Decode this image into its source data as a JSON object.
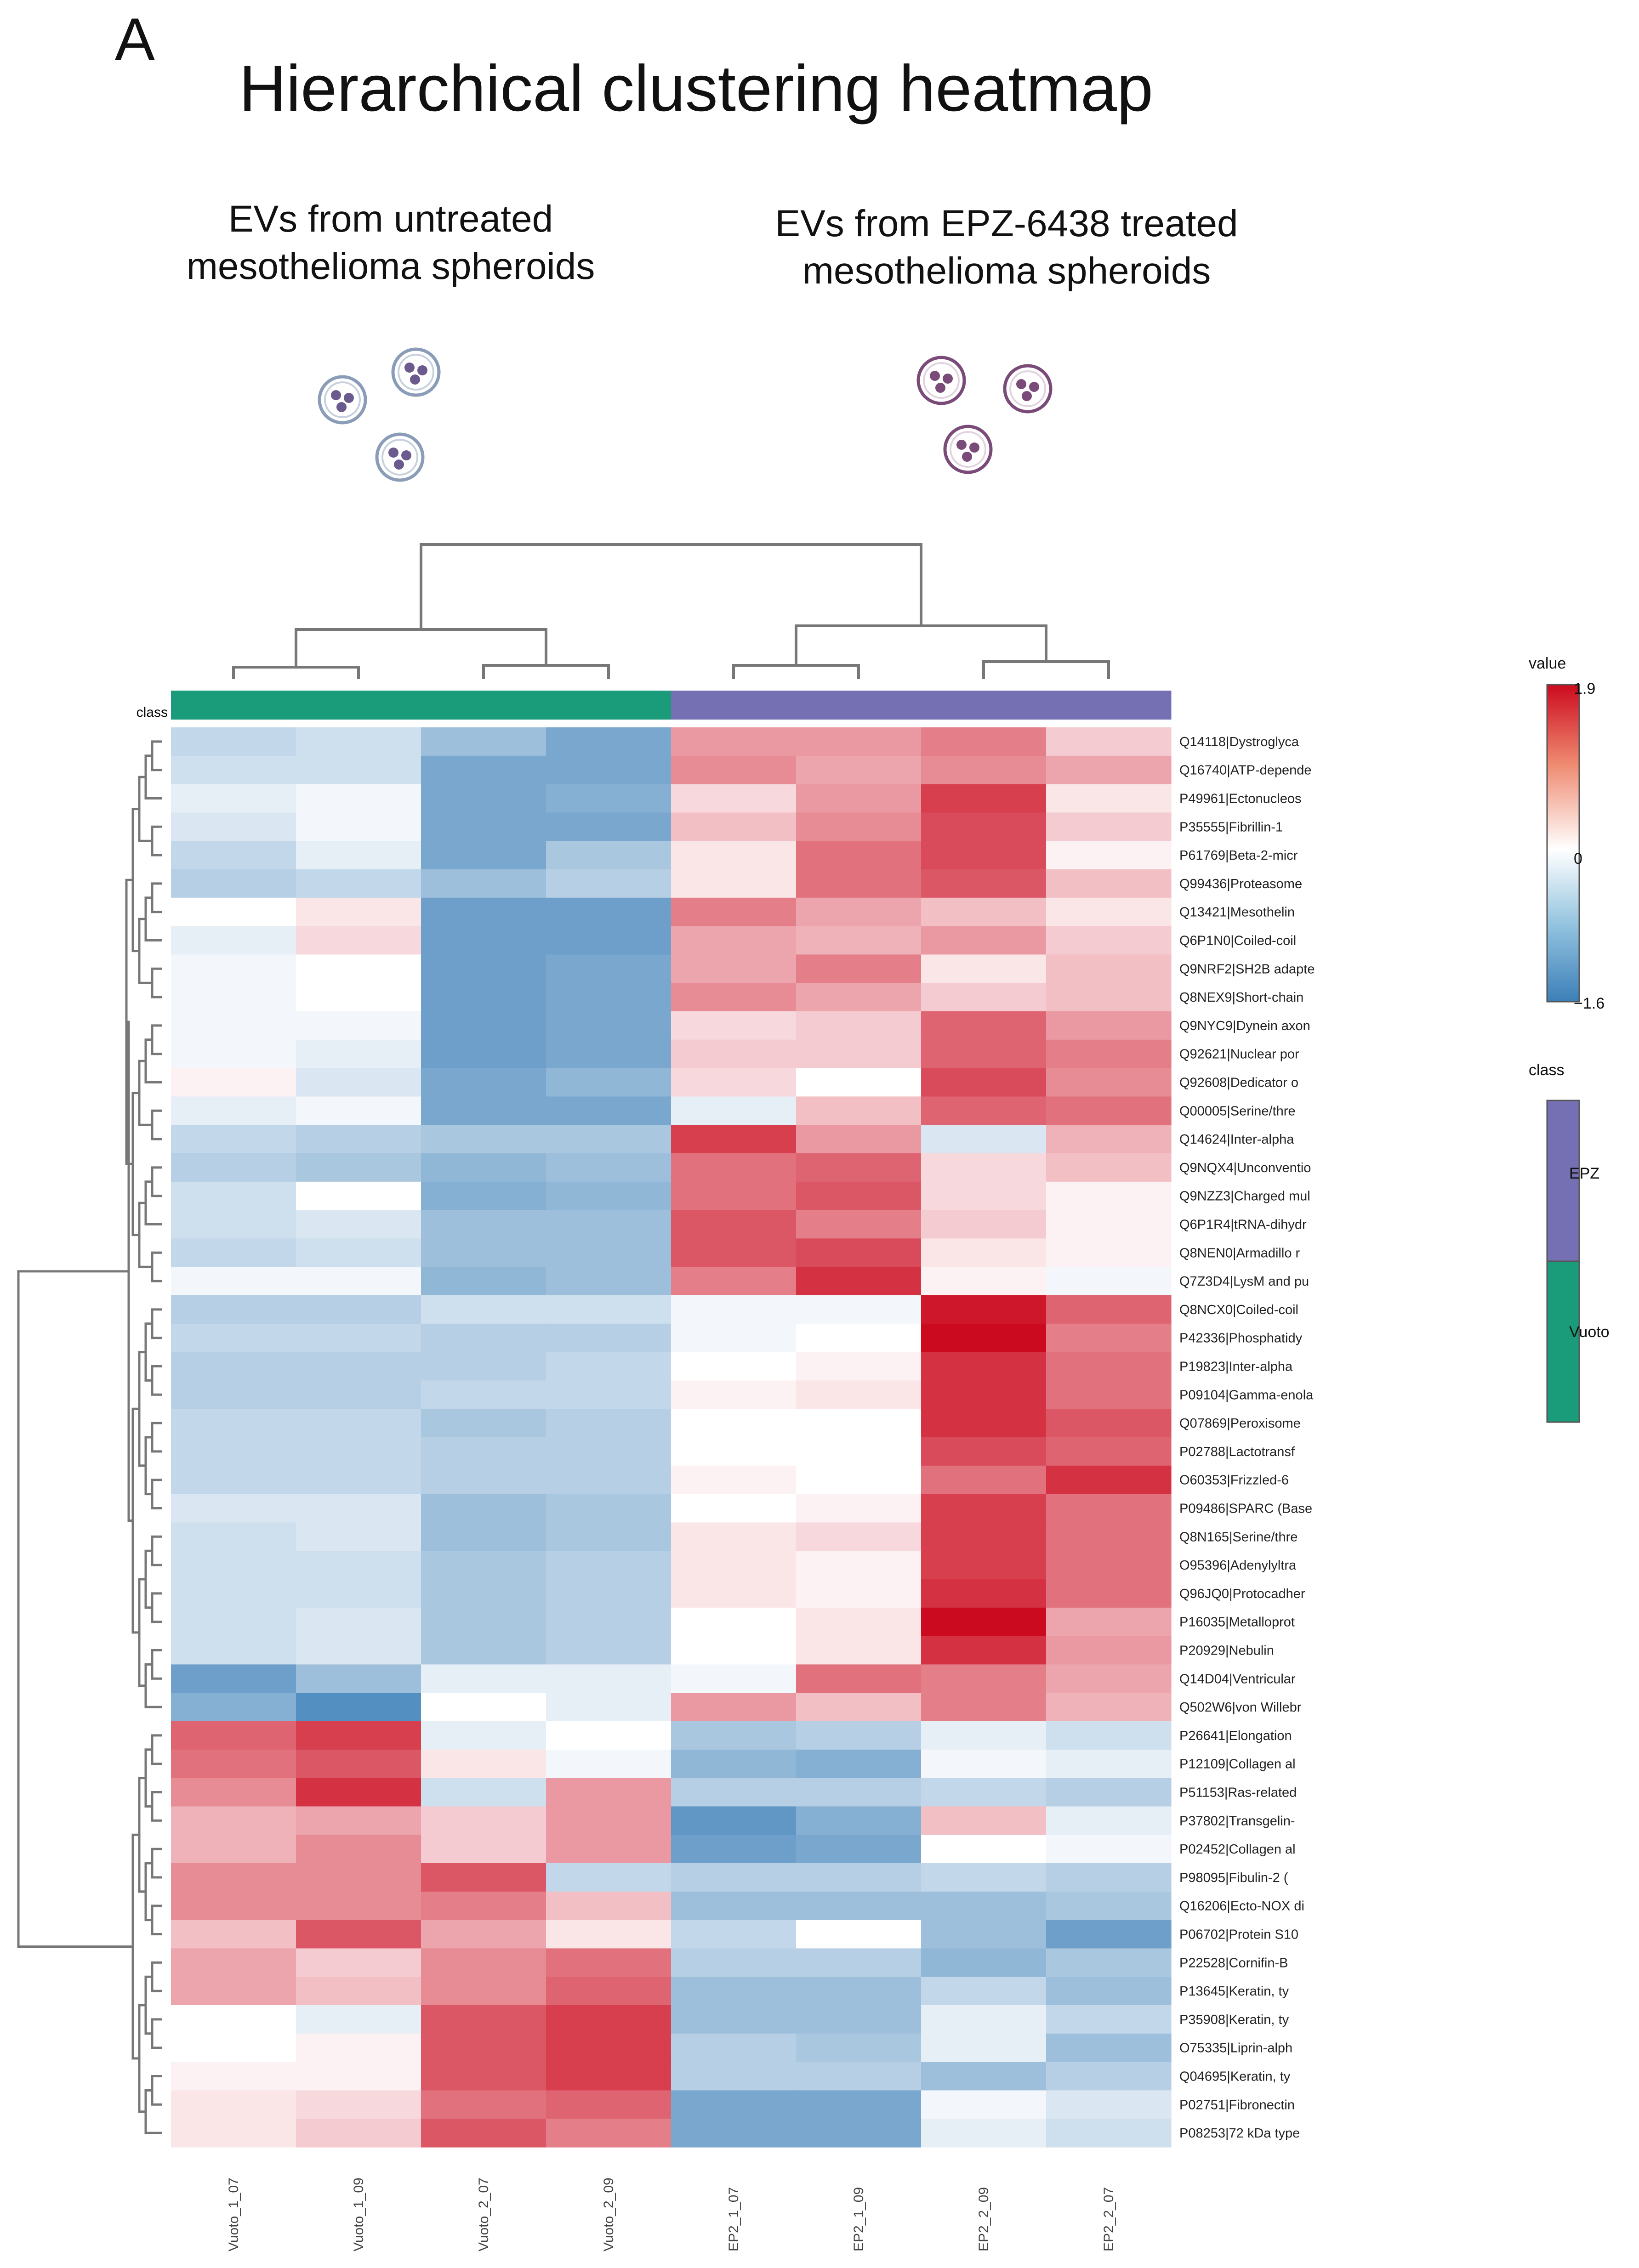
{
  "figure": {
    "panel_letter": "A",
    "title": "Hierarchical clustering heatmap",
    "groups": [
      {
        "name": "untreated",
        "caption": "EVs from untreated\nmesothelioma  spheroids",
        "icon": "spheroid-cell-icon",
        "icon_color": "#6a5a8e"
      },
      {
        "name": "treated",
        "caption": "EVs from EPZ-6438  treated\nmesothelioma  spheroids",
        "icon": "spheroid-cell-icon",
        "icon_color": "#7a4a78"
      }
    ]
  },
  "chart_data": {
    "type": "heatmap",
    "title": "Hierarchical clustering heatmap",
    "columns": [
      "Vuoto_1_07",
      "Vuoto_1_09",
      "Vuoto_2_07",
      "Vuoto_2_09",
      "EP2_1_07",
      "EP2_1_09",
      "EP2_2_09",
      "EP2_2_07"
    ],
    "column_classes": [
      "Vuoto",
      "Vuoto",
      "Vuoto",
      "Vuoto",
      "EPZ",
      "EPZ",
      "EPZ",
      "EPZ"
    ],
    "class_bar_label": "class",
    "rows": [
      "Q14118|Dystroglyca",
      "Q16740|ATP-depende",
      "P49961|Ectonucleos",
      "P35555|Fibrillin-1",
      "P61769|Beta-2-micr",
      "Q99436|Proteasome",
      "Q13421|Mesothelin",
      "Q6P1N0|Coiled-coil",
      "Q9NRF2|SH2B adapte",
      "Q8NEX9|Short-chain",
      "Q9NYC9|Dynein axon",
      "Q92621|Nuclear por",
      "Q92608|Dedicator o",
      "Q00005|Serine/thre",
      "Q14624|Inter-alpha",
      "Q9NQX4|Unconventio",
      "Q9NZZ3|Charged mul",
      "Q6P1R4|tRNA-dihydr",
      "Q8NEN0|Armadillo r",
      "Q7Z3D4|LysM and pu",
      "Q8NCX0|Coiled-coil",
      "P42336|Phosphatidy",
      "P19823|Inter-alpha",
      "P09104|Gamma-enola",
      "Q07869|Peroxisome",
      "P02788|Lactotransf",
      "O60353|Frizzled-6",
      "P09486|SPARC (Base",
      "Q8N165|Serine/thre",
      "O95396|Adenylyltra",
      "Q96JQ0|Protocadher",
      "P16035|Metalloprot",
      "P20929|Nebulin",
      "Q14D04|Ventricular",
      "Q502W6|von Willebr",
      "P26641|Elongation",
      "P12109|Collagen al",
      "P51153|Ras-related",
      "P37802|Transgelin-",
      "P02452|Collagen al",
      "P98095|Fibulin-2 (",
      "Q16206|Ecto-NOX di",
      "P06702|Protein S10",
      "P22528|Cornifin-B",
      "P13645|Keratin, ty",
      "P35908|Keratin, ty",
      "O75335|Liprin-alph",
      "Q04695|Keratin, ty",
      "P02751|Fibronectin",
      "P08253|72 kDa type"
    ],
    "values": [
      [
        -0.5,
        -0.4,
        -0.8,
        -1.1,
        0.8,
        0.8,
        1.0,
        0.4
      ],
      [
        -0.4,
        -0.4,
        -1.1,
        -1.1,
        0.9,
        0.7,
        0.9,
        0.7
      ],
      [
        -0.2,
        -0.1,
        -1.1,
        -1.0,
        0.3,
        0.8,
        1.5,
        0.2
      ],
      [
        -0.3,
        -0.1,
        -1.1,
        -1.1,
        0.5,
        0.9,
        1.4,
        0.4
      ],
      [
        -0.5,
        -0.2,
        -1.1,
        -0.7,
        0.2,
        1.1,
        1.4,
        0.1
      ],
      [
        -0.6,
        -0.5,
        -0.8,
        -0.6,
        0.2,
        1.1,
        1.3,
        0.5
      ],
      [
        0.0,
        0.2,
        -1.2,
        -1.2,
        1.0,
        0.7,
        0.5,
        0.2
      ],
      [
        -0.2,
        0.3,
        -1.2,
        -1.2,
        0.7,
        0.6,
        0.8,
        0.4
      ],
      [
        -0.1,
        0.0,
        -1.2,
        -1.1,
        0.7,
        1.0,
        0.2,
        0.5
      ],
      [
        -0.1,
        0.0,
        -1.2,
        -1.1,
        0.9,
        0.7,
        0.4,
        0.5
      ],
      [
        -0.1,
        -0.1,
        -1.2,
        -1.1,
        0.3,
        0.4,
        1.2,
        0.8
      ],
      [
        -0.1,
        -0.2,
        -1.2,
        -1.1,
        0.4,
        0.4,
        1.2,
        1.0
      ],
      [
        0.1,
        -0.3,
        -1.1,
        -0.9,
        0.3,
        0.0,
        1.4,
        0.9
      ],
      [
        -0.2,
        -0.1,
        -1.1,
        -1.1,
        -0.2,
        0.5,
        1.2,
        1.1
      ],
      [
        -0.5,
        -0.6,
        -0.7,
        -0.7,
        1.5,
        0.8,
        -0.3,
        0.6
      ],
      [
        -0.6,
        -0.7,
        -0.9,
        -0.8,
        1.1,
        1.2,
        0.3,
        0.5
      ],
      [
        -0.4,
        0.0,
        -1.0,
        -0.9,
        1.1,
        1.3,
        0.3,
        0.1
      ],
      [
        -0.4,
        -0.3,
        -0.8,
        -0.8,
        1.3,
        1.0,
        0.4,
        0.1
      ],
      [
        -0.5,
        -0.4,
        -0.8,
        -0.8,
        1.3,
        1.4,
        0.2,
        0.1
      ],
      [
        -0.1,
        -0.1,
        -0.9,
        -0.8,
        1.0,
        1.6,
        0.1,
        -0.1
      ],
      [
        -0.6,
        -0.6,
        -0.4,
        -0.4,
        -0.1,
        -0.1,
        1.8,
        1.2
      ],
      [
        -0.5,
        -0.5,
        -0.6,
        -0.6,
        -0.1,
        0.0,
        2.0,
        1.0
      ],
      [
        -0.6,
        -0.6,
        -0.6,
        -0.5,
        0.0,
        0.1,
        1.6,
        1.1
      ],
      [
        -0.6,
        -0.6,
        -0.5,
        -0.5,
        0.1,
        0.2,
        1.6,
        1.1
      ],
      [
        -0.5,
        -0.5,
        -0.7,
        -0.6,
        0.0,
        0.0,
        1.6,
        1.3
      ],
      [
        -0.5,
        -0.5,
        -0.6,
        -0.6,
        0.0,
        0.0,
        1.4,
        1.2
      ],
      [
        -0.5,
        -0.5,
        -0.6,
        -0.6,
        0.1,
        0.0,
        1.1,
        1.6
      ],
      [
        -0.3,
        -0.3,
        -0.8,
        -0.7,
        0.0,
        0.1,
        1.5,
        1.1
      ],
      [
        -0.4,
        -0.3,
        -0.8,
        -0.7,
        0.2,
        0.3,
        1.5,
        1.1
      ],
      [
        -0.4,
        -0.4,
        -0.7,
        -0.6,
        0.2,
        0.1,
        1.5,
        1.1
      ],
      [
        -0.4,
        -0.4,
        -0.7,
        -0.6,
        0.2,
        0.1,
        1.6,
        1.1
      ],
      [
        -0.4,
        -0.3,
        -0.7,
        -0.6,
        0.0,
        0.2,
        2.1,
        0.7
      ],
      [
        -0.4,
        -0.3,
        -0.7,
        -0.6,
        0.0,
        0.2,
        1.6,
        0.8
      ],
      [
        -1.2,
        -0.8,
        -0.2,
        -0.2,
        -0.1,
        1.1,
        1.0,
        0.7
      ],
      [
        -1.0,
        -1.4,
        0.0,
        -0.2,
        0.8,
        0.5,
        1.0,
        0.6
      ],
      [
        1.2,
        1.5,
        -0.2,
        0.0,
        -0.7,
        -0.6,
        -0.2,
        -0.4
      ],
      [
        1.1,
        1.3,
        0.2,
        -0.1,
        -0.9,
        -1.0,
        -0.1,
        -0.2
      ],
      [
        0.9,
        1.6,
        -0.4,
        0.8,
        -0.6,
        -0.6,
        -0.5,
        -0.6
      ],
      [
        0.6,
        0.7,
        0.4,
        0.8,
        -1.3,
        -1.0,
        0.5,
        -0.2
      ],
      [
        0.6,
        0.9,
        0.4,
        0.8,
        -1.2,
        -1.1,
        0.0,
        -0.1
      ],
      [
        0.9,
        0.9,
        1.3,
        -0.5,
        -0.6,
        -0.6,
        -0.5,
        -0.6
      ],
      [
        0.9,
        0.9,
        1.0,
        0.5,
        -0.8,
        -0.8,
        -0.8,
        -0.7
      ],
      [
        0.5,
        1.3,
        0.7,
        0.2,
        -0.5,
        0.0,
        -0.8,
        -1.2
      ],
      [
        0.7,
        0.4,
        0.9,
        1.1,
        -0.6,
        -0.6,
        -0.9,
        -0.7
      ],
      [
        0.7,
        0.5,
        0.9,
        1.2,
        -0.8,
        -0.8,
        -0.5,
        -0.8
      ],
      [
        0.0,
        -0.2,
        1.3,
        1.5,
        -0.8,
        -0.8,
        -0.2,
        -0.5
      ],
      [
        0.0,
        0.1,
        1.3,
        1.5,
        -0.6,
        -0.7,
        -0.2,
        -0.8
      ],
      [
        0.1,
        0.1,
        1.3,
        1.5,
        -0.6,
        -0.6,
        -0.8,
        -0.6
      ],
      [
        0.2,
        0.3,
        1.1,
        1.2,
        -1.1,
        -1.1,
        -0.1,
        -0.3
      ],
      [
        0.2,
        0.4,
        1.3,
        1.0,
        -1.1,
        -1.1,
        -0.2,
        -0.4
      ]
    ],
    "color_scale": {
      "min": -1.6,
      "mid": 0,
      "max": 1.9,
      "low_color": "#3c7fb8",
      "mid_color": "#ffffff",
      "high_color": "#cc0a1f"
    },
    "class_colors": {
      "Vuoto": "#1a9c7b",
      "EPZ": "#7570b3"
    },
    "legend": {
      "value_title": "value",
      "max_label": "1.9",
      "mid_label": "0",
      "min_label": "−1.6",
      "class_title": "class",
      "class_entries": [
        "EPZ",
        "Vuoto"
      ]
    }
  }
}
